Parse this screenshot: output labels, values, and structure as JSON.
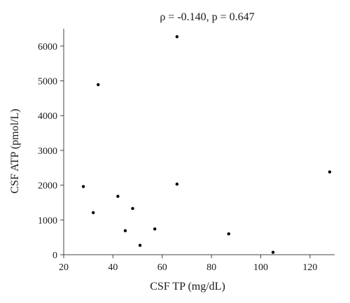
{
  "chart_data": {
    "type": "scatter",
    "title": "ρ = -0.140, p = 0.647",
    "xlabel": "CSF TP (mg/dL)",
    "ylabel": "CSF ATP (pmol/L)",
    "xlim": [
      20,
      130
    ],
    "ylim": [
      0,
      6500
    ],
    "xticks": [
      20,
      40,
      60,
      80,
      100,
      120
    ],
    "yticks": [
      0,
      1000,
      2000,
      3000,
      4000,
      5000,
      6000
    ],
    "grid": false,
    "point_color": "#000000",
    "points": [
      {
        "x": 28,
        "y": 1960
      },
      {
        "x": 32,
        "y": 1210
      },
      {
        "x": 34,
        "y": 4890
      },
      {
        "x": 42,
        "y": 1680
      },
      {
        "x": 45,
        "y": 690
      },
      {
        "x": 48,
        "y": 1330
      },
      {
        "x": 51,
        "y": 270
      },
      {
        "x": 57,
        "y": 740
      },
      {
        "x": 66,
        "y": 6270
      },
      {
        "x": 66,
        "y": 2030
      },
      {
        "x": 87,
        "y": 600
      },
      {
        "x": 105,
        "y": 70
      },
      {
        "x": 128,
        "y": 2380
      }
    ]
  }
}
